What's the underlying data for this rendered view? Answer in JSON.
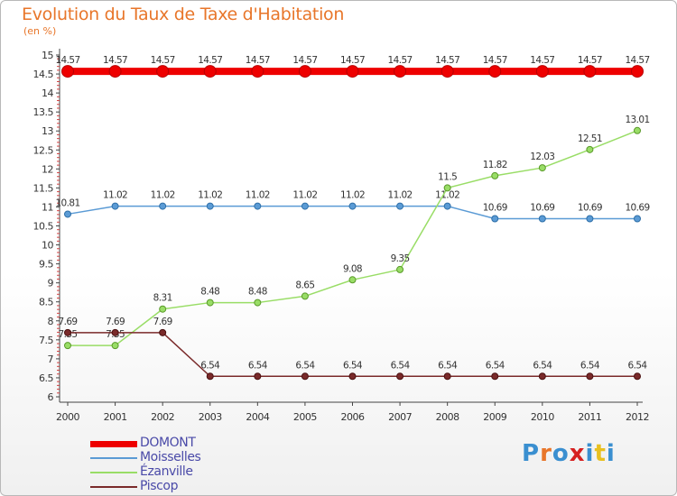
{
  "chart_data": {
    "type": "line",
    "title": "Evolution du Taux de Taxe d'Habitation",
    "subtitle": "(en %)",
    "x": [
      "2000",
      "2001",
      "2002",
      "2003",
      "2004",
      "2005",
      "2006",
      "2007",
      "2008",
      "2009",
      "2010",
      "2011",
      "2012"
    ],
    "ylim": [
      6,
      15
    ],
    "yticks": [
      "6",
      "6.5",
      "7",
      "7.5",
      "8",
      "8.5",
      "9",
      "9.5",
      "10",
      "10.5",
      "11",
      "11.5",
      "12",
      "12.5",
      "13",
      "13.5",
      "14",
      "14.5",
      "15"
    ],
    "grid": false,
    "legend_position": "bottom-left",
    "series": [
      {
        "name": "DOMONT",
        "color": "#ee0000",
        "values": [
          14.57,
          14.57,
          14.57,
          14.57,
          14.57,
          14.57,
          14.57,
          14.57,
          14.57,
          14.57,
          14.57,
          14.57,
          14.57
        ],
        "labels": [
          "14.57",
          "14.57",
          "14.57",
          "14.57",
          "14.57",
          "14.57",
          "14.57",
          "14.57",
          "14.57",
          "14.57",
          "14.57",
          "14.57",
          "14.57"
        ]
      },
      {
        "name": "Moisselles",
        "color": "#5b9bd5",
        "values": [
          10.81,
          11.02,
          11.02,
          11.02,
          11.02,
          11.02,
          11.02,
          11.02,
          11.02,
          10.69,
          10.69,
          10.69,
          10.69
        ],
        "labels": [
          "10.81",
          "11.02",
          "11.02",
          "11.02",
          "11.02",
          "11.02",
          "11.02",
          "11.02",
          "11.02",
          "10.69",
          "10.69",
          "10.69",
          "10.69"
        ]
      },
      {
        "name": "Ézanville",
        "color": "#99dd66",
        "values": [
          7.35,
          7.35,
          8.31,
          8.48,
          8.48,
          8.65,
          9.08,
          9.35,
          11.5,
          11.82,
          12.03,
          12.51,
          13.01
        ],
        "labels": [
          "7.35",
          "7.35",
          "8.31",
          "8.48",
          "8.48",
          "8.65",
          "9.08",
          "9.35",
          "11.5",
          "11.82",
          "12.03",
          "12.51",
          "13.01"
        ]
      },
      {
        "name": "Piscop",
        "color": "#7a2a2a",
        "values": [
          7.69,
          7.69,
          7.69,
          6.54,
          6.54,
          6.54,
          6.54,
          6.54,
          6.54,
          6.54,
          6.54,
          6.54,
          6.54
        ],
        "labels": [
          "7.69",
          "7.69",
          "7.69",
          "6.54",
          "6.54",
          "6.54",
          "6.54",
          "6.54",
          "6.54",
          "6.54",
          "6.54",
          "6.54",
          "6.54"
        ]
      }
    ]
  },
  "logo": {
    "text": "Proxiti",
    "colors": [
      "#3a8fd0",
      "#e8762a",
      "#3a8fd0",
      "#d62020",
      "#3a8fd0",
      "#e8c020",
      "#3a8fd0"
    ]
  }
}
